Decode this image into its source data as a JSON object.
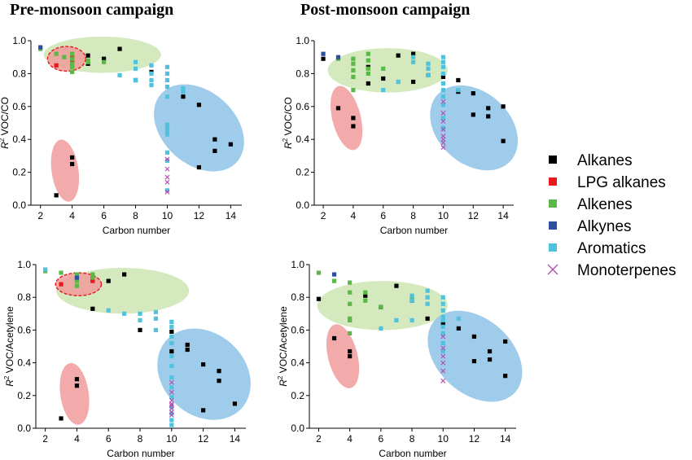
{
  "figure": {
    "legend": [
      {
        "name": "Alkanes",
        "color": "#000000",
        "marker": "square"
      },
      {
        "name": "LPG alkanes",
        "color": "#e8191c",
        "marker": "square"
      },
      {
        "name": "Alkenes",
        "color": "#5ab946",
        "marker": "square"
      },
      {
        "name": "Alkynes",
        "color": "#2e4f9e",
        "marker": "square"
      },
      {
        "name": "Aromatics",
        "color": "#4fc3de",
        "marker": "square"
      },
      {
        "name": "Monoterpenes",
        "color": "#b34ab0",
        "marker": "x"
      }
    ],
    "group_colors": {
      "green": "#c6e2a8",
      "red": "#f19b9c",
      "blue": "#8ec3e6",
      "dashed_outline": "#e8191c"
    }
  },
  "chart_data": [
    {
      "type": "scatter",
      "title": "Pre-monsoon campaign",
      "xlabel": "Carbon number",
      "ylabel": "R² VOC/CO",
      "ylabel_parts": {
        "r": "R",
        "sup": "2",
        "rest": " VOC/CO"
      },
      "xlim": [
        1.4,
        14.7
      ],
      "ylim": [
        0,
        1.0
      ],
      "xticks": [
        2,
        4,
        6,
        8,
        10,
        12,
        14
      ],
      "yticks": [
        0.0,
        0.2,
        0.4,
        0.6,
        0.8,
        1.0
      ],
      "ytick_labels": [
        "0.0",
        "0.2",
        "0.4",
        "0.6",
        "0.8",
        "1.0"
      ],
      "groups": [
        {
          "kind": "ellipse",
          "color": "green",
          "cx": 5.9,
          "cy": 0.915,
          "rx": 3.7,
          "ry": 0.11,
          "angle": 0
        },
        {
          "kind": "ellipse",
          "color": "red",
          "cx": 3.65,
          "cy": 0.89,
          "rx": 1.2,
          "ry": 0.075,
          "angle": 0,
          "dashed": true
        },
        {
          "kind": "ellipse",
          "color": "red",
          "cx": 3.55,
          "cy": 0.21,
          "rx": 0.85,
          "ry": 0.19,
          "angle": -8
        },
        {
          "kind": "ellipse",
          "color": "blue",
          "cx": 12.0,
          "cy": 0.47,
          "rx": 2.3,
          "ry": 0.31,
          "angle": -48
        }
      ],
      "series": [
        {
          "name": "Alkanes",
          "x": [
            3,
            4,
            4,
            5,
            5,
            6,
            7,
            8,
            9,
            11,
            12,
            12,
            13,
            13,
            14
          ],
          "y": [
            0.06,
            0.29,
            0.25,
            0.91,
            0.86,
            0.89,
            0.95,
            0.76,
            0.81,
            0.66,
            0.61,
            0.23,
            0.4,
            0.33,
            0.37
          ]
        },
        {
          "name": "LPG alkanes",
          "x": [
            3,
            4,
            4
          ],
          "y": [
            0.85,
            0.87,
            0.9
          ]
        },
        {
          "name": "Alkenes",
          "x": [
            2,
            3,
            3.5,
            4,
            4,
            4,
            4,
            4,
            5,
            5,
            6
          ],
          "y": [
            0.95,
            0.92,
            0.9,
            0.92,
            0.89,
            0.86,
            0.84,
            0.81,
            0.88,
            0.87,
            0.87
          ]
        },
        {
          "name": "Alkynes",
          "x": [
            2
          ],
          "y": [
            0.96
          ]
        },
        {
          "name": "Aromatics",
          "x": [
            7,
            8,
            8,
            8,
            9,
            9,
            9,
            9,
            10,
            10,
            10,
            10,
            10,
            10,
            10,
            10,
            10,
            10,
            10,
            10,
            11,
            11
          ],
          "y": [
            0.79,
            0.87,
            0.83,
            0.76,
            0.85,
            0.8,
            0.76,
            0.73,
            0.84,
            0.8,
            0.76,
            0.72,
            0.66,
            0.49,
            0.47,
            0.45,
            0.43,
            0.32,
            0.27,
            0.09,
            0.71,
            0.69
          ]
        },
        {
          "name": "Monoterpenes",
          "x": [
            10,
            10,
            10,
            10,
            10
          ],
          "y": [
            0.28,
            0.22,
            0.17,
            0.14,
            0.08
          ]
        }
      ]
    },
    {
      "type": "scatter",
      "title": "Post-monsoon campaign",
      "xlabel": "Carbon number",
      "ylabel": "R² VOC/CO",
      "ylabel_parts": {
        "r": "R",
        "sup": "2",
        "rest": " VOC/CO"
      },
      "xlim": [
        1.4,
        14.7
      ],
      "ylim": [
        0,
        1.0
      ],
      "xticks": [
        2,
        4,
        6,
        8,
        10,
        12,
        14
      ],
      "yticks": [
        0.0,
        0.2,
        0.4,
        0.6,
        0.8,
        1.0
      ],
      "ytick_labels": [
        "0.0",
        "0.2",
        "0.4",
        "0.6",
        "0.8",
        "1.0"
      ],
      "groups": [
        {
          "kind": "ellipse",
          "color": "green",
          "cx": 6.3,
          "cy": 0.82,
          "rx": 4.0,
          "ry": 0.135,
          "angle": 0
        },
        {
          "kind": "ellipse",
          "color": "red",
          "cx": 3.55,
          "cy": 0.53,
          "rx": 0.95,
          "ry": 0.2,
          "angle": -14
        },
        {
          "kind": "ellipse",
          "color": "blue",
          "cx": 12.05,
          "cy": 0.47,
          "rx": 2.4,
          "ry": 0.3,
          "angle": -48
        }
      ],
      "series": [
        {
          "name": "Alkanes",
          "x": [
            2,
            3,
            4,
            4,
            5,
            5,
            6,
            7,
            8,
            8,
            9,
            10,
            11,
            11,
            12,
            12,
            13,
            13,
            14,
            14
          ],
          "y": [
            0.89,
            0.59,
            0.53,
            0.48,
            0.84,
            0.74,
            0.77,
            0.91,
            0.92,
            0.75,
            0.79,
            0.78,
            0.76,
            0.69,
            0.68,
            0.55,
            0.59,
            0.54,
            0.6,
            0.39
          ]
        },
        {
          "name": "Alkenes",
          "x": [
            3,
            4,
            4,
            4,
            4,
            4,
            5,
            5,
            5,
            5,
            6
          ],
          "y": [
            0.89,
            0.89,
            0.86,
            0.82,
            0.78,
            0.7,
            0.92,
            0.88,
            0.83,
            0.8,
            0.83
          ]
        },
        {
          "name": "Alkynes",
          "x": [
            2,
            3
          ],
          "y": [
            0.92,
            0.9
          ]
        },
        {
          "name": "Aromatics",
          "x": [
            6,
            7,
            8,
            8,
            9,
            9,
            9,
            10,
            10,
            10,
            10,
            10,
            10,
            10,
            10,
            10,
            10,
            11
          ],
          "y": [
            0.7,
            0.75,
            0.9,
            0.87,
            0.86,
            0.83,
            0.79,
            0.9,
            0.87,
            0.84,
            0.8,
            0.74,
            0.7,
            0.66,
            0.61,
            0.53,
            0.47,
            0.7
          ]
        },
        {
          "name": "Monoterpenes",
          "x": [
            10,
            10,
            10,
            10,
            10,
            10,
            10,
            10
          ],
          "y": [
            0.63,
            0.56,
            0.51,
            0.46,
            0.42,
            0.4,
            0.38,
            0.35
          ]
        }
      ]
    },
    {
      "type": "scatter",
      "title": "",
      "xlabel": "Carbon number",
      "ylabel": "R² VOC/Acetylene",
      "ylabel_parts": {
        "r": "R",
        "sup": "2",
        "rest": " VOC/Acetylene"
      },
      "xlim": [
        1.4,
        14.7
      ],
      "ylim": [
        0,
        1.0
      ],
      "xticks": [
        2,
        4,
        6,
        8,
        10,
        12,
        14
      ],
      "yticks": [
        0.0,
        0.2,
        0.4,
        0.6,
        0.8,
        1.0
      ],
      "ytick_labels": [
        "0.0",
        "0.2",
        "0.4",
        "0.6",
        "0.8",
        "1.0"
      ],
      "groups": [
        {
          "kind": "ellipse",
          "color": "green",
          "cx": 6.9,
          "cy": 0.84,
          "rx": 4.2,
          "ry": 0.14,
          "angle": 0
        },
        {
          "kind": "ellipse",
          "color": "red",
          "cx": 4.1,
          "cy": 0.88,
          "rx": 1.45,
          "ry": 0.07,
          "angle": 0,
          "dashed": true
        },
        {
          "kind": "ellipse",
          "color": "red",
          "cx": 3.85,
          "cy": 0.21,
          "rx": 0.9,
          "ry": 0.19,
          "angle": -8
        },
        {
          "kind": "ellipse",
          "color": "blue",
          "cx": 12.05,
          "cy": 0.33,
          "rx": 2.6,
          "ry": 0.31,
          "angle": -48
        }
      ],
      "series": [
        {
          "name": "Alkanes",
          "x": [
            3,
            4,
            4,
            5,
            5,
            6,
            7,
            8,
            10,
            10,
            11,
            11,
            12,
            12,
            13,
            13,
            14
          ],
          "y": [
            0.06,
            0.3,
            0.26,
            0.91,
            0.73,
            0.9,
            0.94,
            0.6,
            0.59,
            0.47,
            0.51,
            0.48,
            0.39,
            0.11,
            0.35,
            0.29,
            0.15
          ]
        },
        {
          "name": "LPG alkanes",
          "x": [
            3,
            5
          ],
          "y": [
            0.88,
            0.9
          ]
        },
        {
          "name": "Alkenes",
          "x": [
            2,
            3,
            4,
            4,
            4,
            5,
            5
          ],
          "y": [
            0.96,
            0.95,
            0.94,
            0.9,
            0.87,
            0.94,
            0.92
          ]
        },
        {
          "name": "Alkynes",
          "x": [
            4
          ],
          "y": [
            0.92
          ]
        },
        {
          "name": "Aromatics",
          "x": [
            2,
            6,
            7,
            8,
            8,
            9,
            9,
            9,
            10,
            10,
            10,
            10,
            10,
            10,
            10,
            10,
            10,
            10,
            10,
            10,
            10
          ],
          "y": [
            0.97,
            0.72,
            0.7,
            0.7,
            0.66,
            0.71,
            0.67,
            0.6,
            0.65,
            0.62,
            0.56,
            0.52,
            0.44,
            0.38,
            0.31,
            0.25,
            0.19,
            0.13,
            0.09,
            0.05,
            0.02
          ]
        },
        {
          "name": "Monoterpenes",
          "x": [
            10,
            10,
            10,
            10,
            10,
            10,
            10,
            10
          ],
          "y": [
            0.28,
            0.22,
            0.17,
            0.15,
            0.14,
            0.12,
            0.1,
            0.08
          ]
        }
      ]
    },
    {
      "type": "scatter",
      "title": "",
      "xlabel": "Carbon number",
      "ylabel": "R² VOC/Acetylene",
      "ylabel_parts": {
        "r": "R",
        "sup": "2",
        "rest": " VOC/Acetylene"
      },
      "xlim": [
        1.4,
        14.7
      ],
      "ylim": [
        0,
        1.0
      ],
      "xticks": [
        2,
        4,
        6,
        8,
        10,
        12,
        14
      ],
      "yticks": [
        0.0,
        0.2,
        0.4,
        0.6,
        0.8,
        1.0
      ],
      "ytick_labels": [
        "0.0",
        "0.2",
        "0.4",
        "0.6",
        "0.8",
        "1.0"
      ],
      "groups": [
        {
          "kind": "ellipse",
          "color": "green",
          "cx": 6.1,
          "cy": 0.75,
          "rx": 4.2,
          "ry": 0.15,
          "angle": 0
        },
        {
          "kind": "ellipse",
          "color": "red",
          "cx": 3.55,
          "cy": 0.44,
          "rx": 0.95,
          "ry": 0.2,
          "angle": -14
        },
        {
          "kind": "ellipse",
          "color": "blue",
          "cx": 12.05,
          "cy": 0.44,
          "rx": 2.4,
          "ry": 0.33,
          "angle": -48
        }
      ],
      "series": [
        {
          "name": "Alkanes",
          "x": [
            2,
            3,
            4,
            4,
            5,
            6,
            7,
            8,
            9,
            10,
            11,
            12,
            12,
            13,
            13,
            14,
            14
          ],
          "y": [
            0.79,
            0.55,
            0.47,
            0.44,
            0.81,
            0.74,
            0.87,
            0.78,
            0.67,
            0.64,
            0.61,
            0.56,
            0.41,
            0.47,
            0.42,
            0.53,
            0.32
          ]
        },
        {
          "name": "Alkenes",
          "x": [
            2,
            3,
            4,
            4,
            4,
            4,
            4,
            4,
            5,
            5,
            6,
            8
          ],
          "y": [
            0.95,
            0.9,
            0.89,
            0.83,
            0.76,
            0.67,
            0.66,
            0.58,
            0.83,
            0.78,
            0.74,
            0.8
          ]
        },
        {
          "name": "Alkynes",
          "x": [
            3
          ],
          "y": [
            0.94
          ]
        },
        {
          "name": "Aromatics",
          "x": [
            6,
            7,
            8,
            8,
            8,
            9,
            9,
            9,
            10,
            10,
            10,
            10,
            10,
            10,
            10,
            10,
            10,
            11
          ],
          "y": [
            0.61,
            0.66,
            0.81,
            0.78,
            0.66,
            0.84,
            0.8,
            0.76,
            0.8,
            0.76,
            0.72,
            0.68,
            0.66,
            0.62,
            0.58,
            0.52,
            0.47,
            0.67
          ]
        },
        {
          "name": "Monoterpenes",
          "x": [
            10,
            10,
            10,
            10,
            10,
            10
          ],
          "y": [
            0.56,
            0.49,
            0.44,
            0.4,
            0.35,
            0.29
          ]
        }
      ]
    }
  ]
}
